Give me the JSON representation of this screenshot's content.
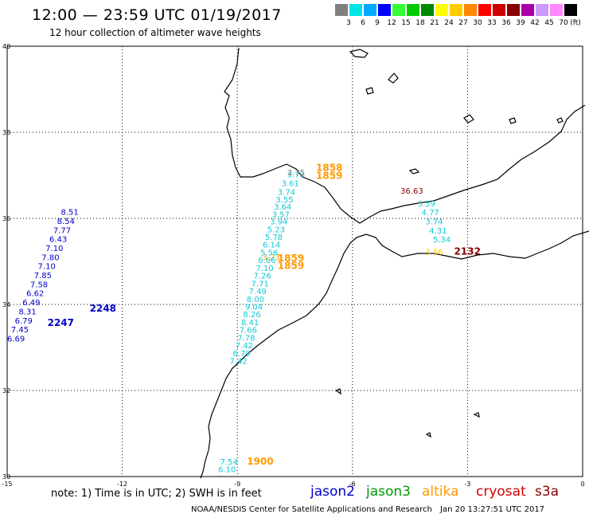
{
  "header": {
    "title": "12:00 — 23:59 UTC 01/19/2017",
    "subtitle": "12 hour collection of altimeter wave heights"
  },
  "legend": {
    "unit": "(ft)",
    "bins": [
      {
        "label": "3",
        "color": "#808080"
      },
      {
        "label": "6",
        "color": "#00e5e5"
      },
      {
        "label": "9",
        "color": "#00aaff"
      },
      {
        "label": "12",
        "color": "#0000ff"
      },
      {
        "label": "15",
        "color": "#33ff33"
      },
      {
        "label": "18",
        "color": "#00cc00"
      },
      {
        "label": "21",
        "color": "#008800"
      },
      {
        "label": "24",
        "color": "#ffff00"
      },
      {
        "label": "27",
        "color": "#ffcc00"
      },
      {
        "label": "30",
        "color": "#ff8800"
      },
      {
        "label": "33",
        "color": "#ff0000"
      },
      {
        "label": "36",
        "color": "#cc0000"
      },
      {
        "label": "39",
        "color": "#880000"
      },
      {
        "label": "42",
        "color": "#aa00aa"
      },
      {
        "label": "45",
        "color": "#cc99ff"
      },
      {
        "label": "70",
        "color": "#ff88ff"
      },
      {
        "label": "",
        "color": "#000000"
      }
    ]
  },
  "axes": {
    "lat_labels": [
      "40",
      "38",
      "36",
      "34",
      "32",
      "30"
    ],
    "lon_labels": [
      "-15",
      "-12",
      "-9",
      "-6",
      "-3",
      "0"
    ]
  },
  "tracks": [
    {
      "satellite": "jason2",
      "color": "#0000cc",
      "time_labels": [
        {
          "text": "2248",
          "lon": -12.85,
          "lat": 33.83
        },
        {
          "text": "2247",
          "lon": -13.95,
          "lat": 33.5
        }
      ],
      "values": [
        {
          "text": "8.51",
          "lon": -13.6,
          "lat": 36.08
        },
        {
          "text": "8.54",
          "lon": -13.7,
          "lat": 35.87
        },
        {
          "text": "7.77",
          "lon": -13.8,
          "lat": 35.66
        },
        {
          "text": "6.43",
          "lon": -13.9,
          "lat": 35.45
        },
        {
          "text": "7.10",
          "lon": -14.0,
          "lat": 35.24
        },
        {
          "text": "7.80",
          "lon": -14.1,
          "lat": 35.03
        },
        {
          "text": "7.10",
          "lon": -14.2,
          "lat": 34.82
        },
        {
          "text": "7.85",
          "lon": -14.3,
          "lat": 34.61
        },
        {
          "text": "7.58",
          "lon": -14.4,
          "lat": 34.4
        },
        {
          "text": "6.62",
          "lon": -14.5,
          "lat": 34.19
        },
        {
          "text": "6.49",
          "lon": -14.6,
          "lat": 33.98
        },
        {
          "text": "8.31",
          "lon": -14.7,
          "lat": 33.77
        },
        {
          "text": "6.79",
          "lon": -14.8,
          "lat": 33.56
        },
        {
          "text": "7.45",
          "lon": -14.9,
          "lat": 33.35
        },
        {
          "text": "6.69",
          "lon": -15.0,
          "lat": 33.14
        }
      ]
    },
    {
      "satellite": "altika",
      "color": "#ff9900",
      "time_labels": [
        {
          "text": "1858",
          "lon": -6.95,
          "lat": 37.1
        },
        {
          "text": "1859",
          "lon": -6.95,
          "lat": 36.92
        },
        {
          "text": "1859",
          "lon": -7.95,
          "lat": 35.0
        },
        {
          "text": "1859",
          "lon": -7.95,
          "lat": 34.82
        },
        {
          "text": "1900",
          "lon": -8.75,
          "lat": 30.28
        }
      ],
      "values": [
        {
          "text": "3.23",
          "lon": -8.35,
          "lat": 35.04
        }
      ]
    },
    {
      "satellite": "jason3-cyan-track",
      "color": "#11c9d8",
      "time_labels": [],
      "values": [
        {
          "text": "3.73",
          "lon": -7.7,
          "lat": 36.95
        },
        {
          "text": "3.61",
          "lon": -7.85,
          "lat": 36.75
        },
        {
          "text": "3.74",
          "lon": -7.95,
          "lat": 36.55
        },
        {
          "text": "3.55",
          "lon": -8.0,
          "lat": 36.37
        },
        {
          "text": "3.64",
          "lon": -8.05,
          "lat": 36.2
        },
        {
          "text": "3.57",
          "lon": -8.1,
          "lat": 36.03
        },
        {
          "text": "3.94",
          "lon": -8.15,
          "lat": 35.86
        },
        {
          "text": "5.23",
          "lon": -8.22,
          "lat": 35.68
        },
        {
          "text": "5.78",
          "lon": -8.28,
          "lat": 35.5
        },
        {
          "text": "6.14",
          "lon": -8.34,
          "lat": 35.32
        },
        {
          "text": "5.56",
          "lon": -8.4,
          "lat": 35.14
        },
        {
          "text": "6.66",
          "lon": -8.46,
          "lat": 34.96
        },
        {
          "text": "7.10",
          "lon": -8.52,
          "lat": 34.78
        },
        {
          "text": "7.26",
          "lon": -8.58,
          "lat": 34.6
        },
        {
          "text": "7.71",
          "lon": -8.64,
          "lat": 34.42
        },
        {
          "text": "7.49",
          "lon": -8.7,
          "lat": 34.24
        },
        {
          "text": "8.00",
          "lon": -8.76,
          "lat": 34.06
        },
        {
          "text": "9.04",
          "lon": -8.8,
          "lat": 33.88
        },
        {
          "text": "8.26",
          "lon": -8.85,
          "lat": 33.7
        },
        {
          "text": "8.41",
          "lon": -8.9,
          "lat": 33.52
        },
        {
          "text": "7.66",
          "lon": -8.95,
          "lat": 33.34
        },
        {
          "text": "7.78",
          "lon": -9.0,
          "lat": 33.16
        },
        {
          "text": "7.42",
          "lon": -9.05,
          "lat": 32.98
        },
        {
          "text": "6.79",
          "lon": -9.12,
          "lat": 32.8
        },
        {
          "text": "7.42",
          "lon": -9.2,
          "lat": 32.62
        },
        {
          "text": "7.54",
          "lon": -9.45,
          "lat": 30.28
        },
        {
          "text": "6.10",
          "lon": -9.5,
          "lat": 30.1
        }
      ]
    },
    {
      "satellite": "cryosat-cyan-track",
      "color": "#11c9d8",
      "time_labels": [],
      "values": [
        {
          "text": "3.59",
          "lon": -4.3,
          "lat": 36.28
        },
        {
          "text": "4.77",
          "lon": -4.2,
          "lat": 36.07
        },
        {
          "text": "3.74",
          "lon": -4.1,
          "lat": 35.86
        },
        {
          "text": "4.31",
          "lon": -4.0,
          "lat": 35.65
        },
        {
          "text": "5.34",
          "lon": -3.9,
          "lat": 35.44
        }
      ]
    },
    {
      "satellite": "gray-track",
      "color": "#808080",
      "time_labels": [],
      "values": [
        {
          "text": "2.75",
          "lon": -7.7,
          "lat": 37.0
        }
      ]
    },
    {
      "satellite": "cryosat-red",
      "color": "#880000",
      "time_labels": [
        {
          "text": "2132",
          "lon": -3.35,
          "lat": 35.16
        }
      ],
      "values": [
        {
          "text": "36.63",
          "lon": -4.75,
          "lat": 36.57
        }
      ]
    },
    {
      "satellite": "altika-yellow",
      "color": "#ffcc00",
      "time_labels": [],
      "values": [
        {
          "text": "3.56",
          "lon": -4.1,
          "lat": 35.16
        }
      ]
    }
  ],
  "note": "note:  1) Time is in UTC;  2) SWH is in feet",
  "satellites": [
    {
      "name": "jason2",
      "color": "#0000cc"
    },
    {
      "name": "jason3",
      "color": "#009900"
    },
    {
      "name": "altika",
      "color": "#ff9900"
    },
    {
      "name": "cryosat",
      "color": "#cc0000"
    },
    {
      "name": "s3a",
      "color": "#880000"
    }
  ],
  "footer": {
    "credit": "NOAA/NESDIS Center for Satellite Applications and Research",
    "timestamp": "Jan 20 13:27:51 UTC 2017"
  }
}
